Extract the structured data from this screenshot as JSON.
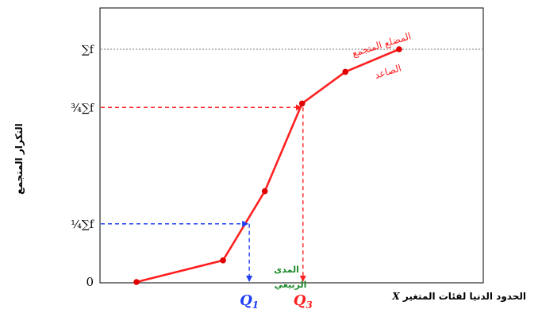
{
  "chart_data": {
    "type": "line",
    "title": "",
    "xlabel": "الحدود الدنيا لفئات المتغير",
    "xlabel_var": "X",
    "ylabel": "التكرار المتجمع",
    "ylim": [
      0,
      1
    ],
    "grid": false,
    "legend": "none",
    "y_tick_labels": [
      "0",
      "¼∑f",
      "¾∑f",
      "∑f"
    ],
    "y_tick_values": [
      0,
      0.25,
      0.75,
      1
    ],
    "series": [
      {
        "name": "",
        "color": "#ff2020",
        "points": [
          {
            "x": 0.0,
            "y": 0.0
          },
          {
            "x": 0.29,
            "y": 0.093
          },
          {
            "x": 0.43,
            "y": 0.39
          },
          {
            "x": 0.555,
            "y": 0.767
          },
          {
            "x": 0.7,
            "y": 0.903
          },
          {
            "x": 0.88,
            "y": 1.0
          }
        ]
      }
    ],
    "quartiles": [
      {
        "label": "Q",
        "sub": "1",
        "y": 0.25,
        "x": 0.378,
        "color": "#1f3ef5"
      },
      {
        "label": "Q",
        "sub": "3",
        "y": 0.75,
        "x": 0.558,
        "color": "#ff2020"
      }
    ],
    "annotations": {
      "curve_label_line1": "المضلع المتجمع",
      "curve_label_line2": "الصاعد",
      "iqr_label_line1": "المدى",
      "iqr_label_line2": "الربيعي",
      "curve_label_color": "#ff2020",
      "iqr_label_color": "#1a8a2a"
    }
  }
}
